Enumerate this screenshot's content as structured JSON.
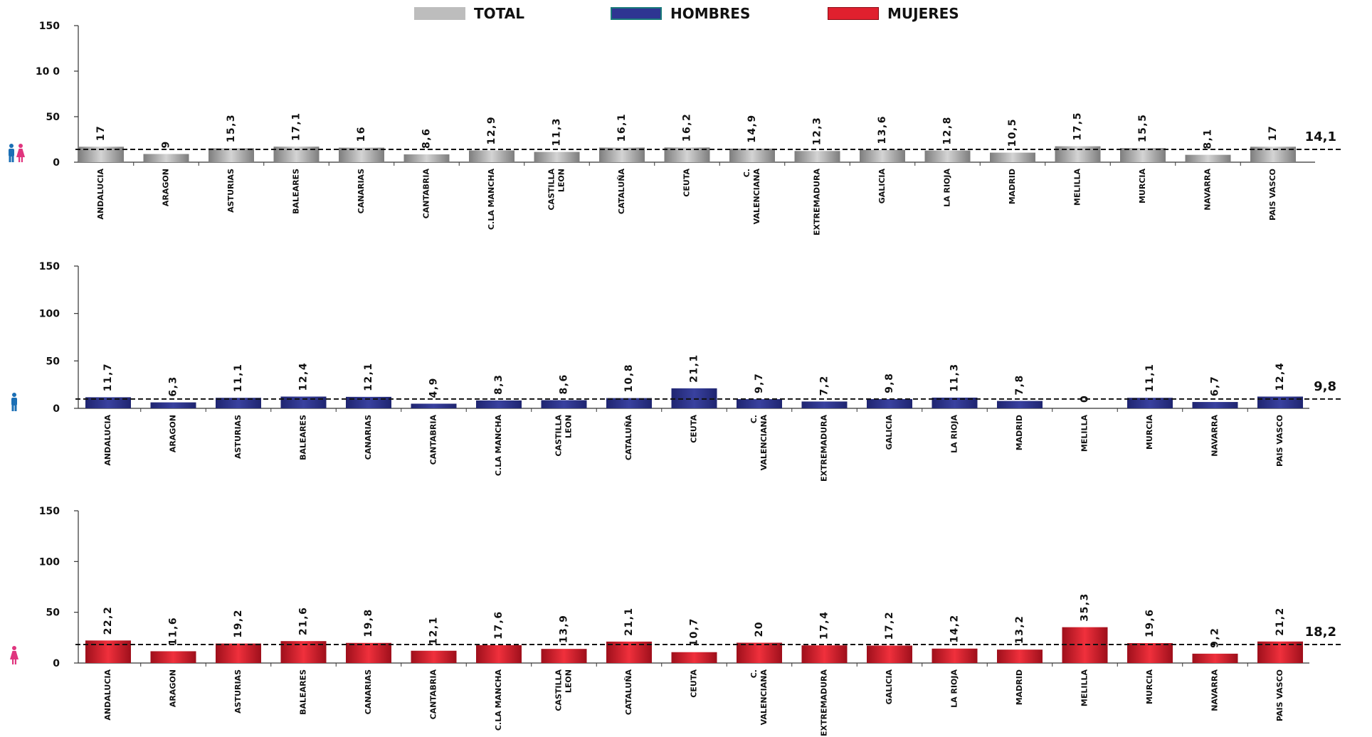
{
  "legend": {
    "total": {
      "label": "TOTAL",
      "color": "#bdbdbd"
    },
    "hombres": {
      "label": "HOMBRES",
      "color": "#2e3592"
    },
    "mujeres": {
      "label": "MUJERES",
      "color": "#e0202e"
    }
  },
  "chart_data": [
    {
      "type": "bar",
      "series_name": "TOTAL",
      "color": "#a8a8a8",
      "icon": "man-and-woman-icon",
      "categories": [
        "ANDALUCIA",
        "ARAGON",
        "ASTURIAS",
        "BALEARES",
        "CANARIAS",
        "CANTABRIA",
        "C.LA MANCHA",
        "CASTILLA LEON",
        "CATALUÑA",
        "CEUTA",
        "C. VALENCIANA",
        "EXTREMADURA",
        "GALICIA",
        "LA RIOJA",
        "MADRID",
        "MELILLA",
        "MURCIA",
        "NAVARRA",
        "PAIS VASCO"
      ],
      "values": [
        17,
        9,
        15.3,
        17.1,
        16,
        8.6,
        12.9,
        11.3,
        16.1,
        16.2,
        14.9,
        12.3,
        13.6,
        12.8,
        10.5,
        17.5,
        15.5,
        8.1,
        17
      ],
      "value_labels": [
        "17",
        "9",
        "15,3",
        "17,1",
        "16",
        "8,6",
        "12,9",
        "11,3",
        "16,1",
        "16,2",
        "14,9",
        "12,3",
        "13,6",
        "12,8",
        "10,5",
        "17,5",
        "15,5",
        "8,1",
        "17"
      ],
      "yticks": [
        0,
        50,
        100,
        150
      ],
      "ytick_labels": [
        "0",
        "50",
        "10 0",
        "150"
      ],
      "ylim": [
        0,
        150
      ],
      "reference_line": 14.1,
      "reference_label": "14,1"
    },
    {
      "type": "bar",
      "series_name": "HOMBRES",
      "color": "#2e3592",
      "icon": "man-icon",
      "categories": [
        "ANDALUCIA",
        "ARAGON",
        "ASTURIAS",
        "BALEARES",
        "CANARIAS",
        "CANTABRIA",
        "C.LA MANCHA",
        "CASTILLA LEON",
        "CATALUÑA",
        "CEUTA",
        "C. VALENCIANA",
        "EXTREMADURA",
        "GALICIA",
        "LA RIOJA",
        "MADRID",
        "MELILLA",
        "MURCIA",
        "NAVARRA",
        "PAIS VASCO"
      ],
      "values": [
        11.7,
        6.3,
        11.1,
        12.4,
        12.1,
        4.9,
        8.3,
        8.6,
        10.8,
        21.1,
        9.7,
        7.2,
        9.8,
        11.3,
        7.8,
        0,
        11.1,
        6.7,
        12.4
      ],
      "value_labels": [
        "11,7",
        "6,3",
        "11,1",
        "12,4",
        "12,1",
        "4,9",
        "8,3",
        "8,6",
        "10,8",
        "21,1",
        "9,7",
        "7,2",
        "9,8",
        "11,3",
        "7,8",
        "0",
        "11,1",
        "6,7",
        "12,4"
      ],
      "yticks": [
        0,
        50,
        100,
        150
      ],
      "ytick_labels": [
        "0",
        "50",
        "100",
        "150"
      ],
      "ylim": [
        0,
        150
      ],
      "reference_line": 9.8,
      "reference_label": "9,8"
    },
    {
      "type": "bar",
      "series_name": "MUJERES",
      "color": "#d21d2a",
      "icon": "woman-icon",
      "categories": [
        "ANDALUCIA",
        "ARAGON",
        "ASTURIAS",
        "BALEARES",
        "CANARIAS",
        "CANTABRIA",
        "C.LA MANCHA",
        "CASTILLA LEON",
        "CATALUÑA",
        "CEUTA",
        "C. VALENCIANA",
        "EXTREMADURA",
        "GALICIA",
        "LA RIOJA",
        "MADRID",
        "MELILLA",
        "MURCIA",
        "NAVARRA",
        "PAIS VASCO"
      ],
      "values": [
        22.2,
        11.6,
        19.2,
        21.6,
        19.8,
        12.1,
        17.6,
        13.9,
        21.1,
        10.7,
        20,
        17.4,
        17.2,
        14.2,
        13.2,
        35.3,
        19.6,
        9.2,
        21.2
      ],
      "value_labels": [
        "22,2",
        "11,6",
        "19,2",
        "21,6",
        "19,8",
        "12,1",
        "17,6",
        "13,9",
        "21,1",
        "10,7",
        "20",
        "17,4",
        "17,2",
        "14,2",
        "13,2",
        "35,3",
        "19,6",
        "9,2",
        "21,2"
      ],
      "yticks": [
        0,
        50,
        100,
        150
      ],
      "ytick_labels": [
        "0",
        "50",
        "100",
        "150"
      ],
      "ylim": [
        0,
        150
      ],
      "reference_line": 18.2,
      "reference_label": "18,2"
    }
  ]
}
